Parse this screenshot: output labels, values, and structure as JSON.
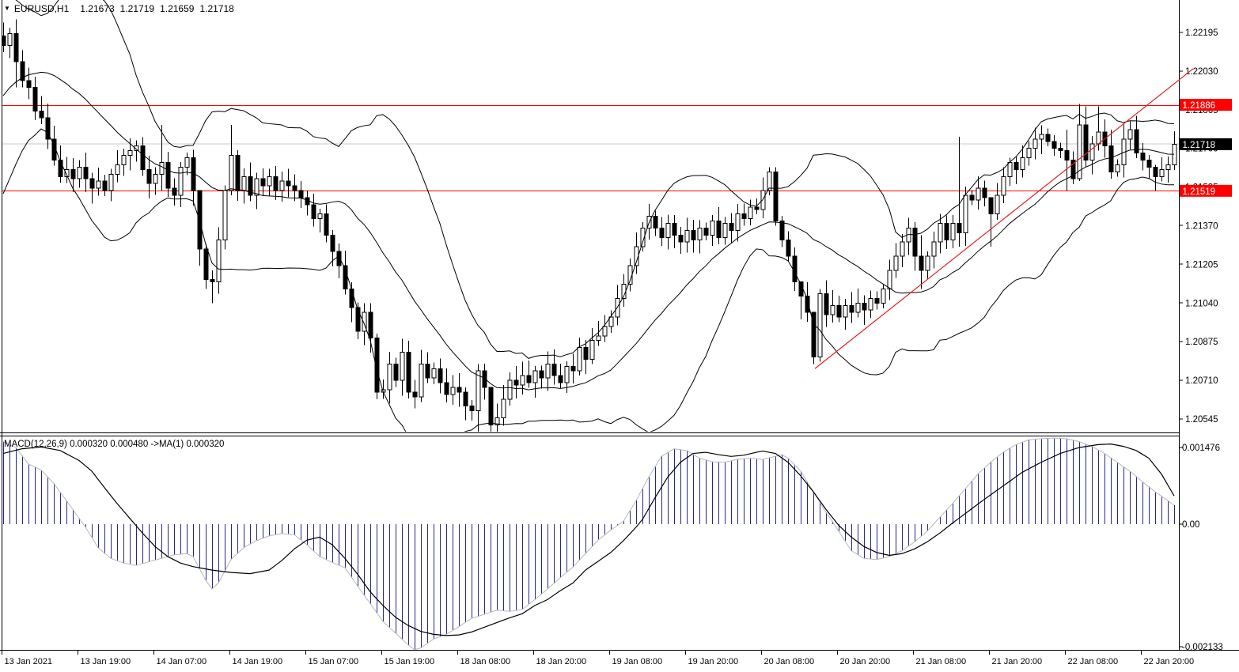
{
  "header": {
    "dropdown_icon": "▼",
    "symbol_period": "EURUSD,H1",
    "open": "1.21673",
    "high": "1.21719",
    "low": "1.21659",
    "close": "1.21718"
  },
  "macd_header": {
    "label": "MACD(12,26,9) 0.000320 0.000480  ->MA(1) 0.000320"
  },
  "colors": {
    "background": "#ffffff",
    "bull_body": "#ffffff",
    "bear_body": "#000000",
    "candle_outline": "#000000",
    "bollinger": "#000000",
    "level_line": "#ff0000",
    "trend_line": "#e02020",
    "current_price_line": "#c9c9c9",
    "badge_red": "#ff0000",
    "badge_black": "#000000",
    "badge_text": "#ffffff",
    "macd_bar": "#26268e",
    "macd_tip_line": "#b8b8b8",
    "macd_signal": "#000000",
    "axis_line": "#000000",
    "text": "#000000"
  },
  "chart_data": {
    "type": "candlestick",
    "symbol": "EURUSD",
    "timeframe": "H1",
    "ohlc_display": {
      "open": 1.21673,
      "high": 1.21719,
      "low": 1.21659,
      "close": 1.21718
    },
    "first_open": 1.2218,
    "closes": [
      1.2214,
      1.2219,
      1.2207,
      1.2199,
      1.2196,
      1.2186,
      1.2183,
      1.2174,
      1.2165,
      1.2158,
      1.2161,
      1.2157,
      1.2162,
      1.2157,
      1.2153,
      1.2156,
      1.2152,
      1.2159,
      1.2163,
      1.2167,
      1.2169,
      1.2171,
      1.2161,
      1.2155,
      1.2159,
      1.2164,
      1.2153,
      1.215,
      1.2162,
      1.2166,
      1.2152,
      1.2127,
      1.2114,
      1.2113,
      1.2131,
      1.2152,
      1.2167,
      1.2152,
      1.2158,
      1.215,
      1.2157,
      1.2154,
      1.2158,
      1.2152,
      1.2156,
      1.2154,
      1.2152,
      1.2149,
      1.2146,
      1.214,
      1.2142,
      1.2133,
      1.2126,
      1.212,
      1.211,
      1.2102,
      1.2092,
      1.21,
      1.2089,
      1.2066,
      1.2067,
      1.2078,
      1.2071,
      1.2083,
      1.2066,
      1.2064,
      1.2078,
      1.2072,
      1.2076,
      1.207,
      1.2065,
      1.2068,
      1.2066,
      1.206,
      1.2058,
      1.2075,
      1.2068,
      1.2052,
      1.2055,
      1.2063,
      1.2071,
      1.2069,
      1.2073,
      1.207,
      1.2075,
      1.2072,
      1.2078,
      1.2073,
      1.207,
      1.2077,
      1.2075,
      1.2085,
      1.208,
      1.2088,
      1.209,
      1.2094,
      1.2098,
      1.2106,
      1.2112,
      1.212,
      1.2128,
      1.2136,
      1.2141,
      1.2136,
      1.2132,
      1.2138,
      1.2133,
      1.213,
      1.2135,
      1.2131,
      1.2136,
      1.2133,
      1.2139,
      1.2132,
      1.2138,
      1.2135,
      1.2142,
      1.214,
      1.2145,
      1.2144,
      1.2152,
      1.216,
      1.2139,
      1.2131,
      1.2124,
      1.2113,
      1.2107,
      1.21,
      1.2081,
      1.2108,
      1.2099,
      1.2103,
      1.2098,
      1.2103,
      1.21,
      1.2104,
      1.2101,
      1.2106,
      1.2104,
      1.211,
      1.2118,
      1.2124,
      1.213,
      1.2136,
      1.2124,
      1.2118,
      1.2124,
      1.213,
      1.2138,
      1.2131,
      1.2138,
      1.2134,
      1.215,
      1.2148,
      1.2153,
      1.2149,
      1.2142,
      1.215,
      1.2158,
      1.2164,
      1.2161,
      1.2166,
      1.217,
      1.2174,
      1.2176,
      1.2173,
      1.217,
      1.2169,
      1.2165,
      1.2157,
      1.218,
      1.2165,
      1.2172,
      1.2177,
      1.2171,
      1.216,
      1.2163,
      1.2174,
      1.2178,
      1.2168,
      1.2165,
      1.2162,
      1.2158,
      1.2161,
      1.2163,
      1.21718
    ],
    "wick_overrides": {
      "2": [
        1.2225,
        1.2196
      ],
      "25": [
        1.218,
        1.2152
      ],
      "31": [
        1.2152,
        1.212
      ],
      "33": [
        1.2118,
        1.2104
      ],
      "36": [
        1.218,
        1.215
      ],
      "59": [
        1.2091,
        1.2063
      ],
      "75": [
        1.2078,
        1.2049
      ],
      "77": [
        1.2061,
        1.2048
      ],
      "121": [
        1.2162,
        1.215
      ],
      "122": [
        1.2162,
        1.2137
      ],
      "126": [
        1.211,
        1.2097
      ],
      "128": [
        1.2098,
        1.2078
      ],
      "129": [
        1.211,
        1.2079
      ],
      "145": [
        1.2133,
        1.211
      ],
      "151": [
        1.2175,
        1.2128
      ],
      "156": [
        1.2148,
        1.2128
      ],
      "168": [
        1.2178,
        1.2152
      ],
      "170": [
        1.2189,
        1.2156
      ],
      "171": [
        1.2188,
        1.2162
      ],
      "173": [
        1.2188,
        1.2169
      ],
      "175": [
        1.2178,
        1.2157
      ],
      "182": [
        1.2163,
        1.2152
      ]
    },
    "bollinger": {
      "period": 20,
      "deviation": 2,
      "prehistory_closes_estimated": [
        1.2148,
        1.2152,
        1.2158,
        1.2163,
        1.217,
        1.2175,
        1.2172,
        1.218,
        1.2186,
        1.2192,
        1.2198,
        1.2203,
        1.2199,
        1.2206,
        1.221,
        1.2212,
        1.2208,
        1.2214,
        1.222,
        1.2218
      ]
    },
    "levels": {
      "resistance": 1.21886,
      "support": 1.21519,
      "last_price": 1.21718
    },
    "trendline": {
      "from_bar": 128.25,
      "from_price": 1.2076,
      "to_bar": 188,
      "to_price": 1.2204
    },
    "price_axis": {
      "labels": [
        "1.22195",
        "1.22030",
        "1.21865",
        "1.21700",
        "1.21535",
        "1.21370",
        "1.21205",
        "1.21040",
        "1.20875",
        "1.20710",
        "1.20545"
      ],
      "values": [
        1.22195,
        1.2203,
        1.21865,
        1.217,
        1.21535,
        1.2137,
        1.21205,
        1.2104,
        1.20875,
        1.2071,
        1.20545
      ],
      "badges": [
        {
          "text": "1.21886",
          "value": 1.21886,
          "bg": "#ff0000",
          "role": "resistance"
        },
        {
          "text": "1.21718",
          "value": 1.21718,
          "bg": "#000000",
          "role": "current-price"
        },
        {
          "text": "1.21519",
          "value": 1.21519,
          "bg": "#ff0000",
          "role": "support"
        }
      ]
    },
    "macd": {
      "label": "MACD(12,26,9) 0.000320 0.000480  ->MA(1) 0.000320",
      "current_value": 0.00032,
      "current_signal": 0.00048,
      "axis_labels": [
        {
          "text": "0.001476",
          "value": 0.001476
        },
        {
          "text": "0.00",
          "value": 0
        },
        {
          "text": "-0.002133",
          "value": -0.002133
        }
      ],
      "values_keypoints": [
        [
          0,
          0.0014
        ],
        [
          2,
          0.0013
        ],
        [
          4,
          0.00102
        ],
        [
          6,
          0.00092
        ],
        [
          8,
          0.00069
        ],
        [
          10,
          0.0004
        ],
        [
          12,
          0.0001
        ],
        [
          13,
          -5e-05
        ],
        [
          15,
          -0.0004
        ],
        [
          17,
          -0.00058
        ],
        [
          19,
          -0.00066
        ],
        [
          21,
          -0.0007
        ],
        [
          23,
          -0.00064
        ],
        [
          25,
          -0.00058
        ],
        [
          27,
          -0.00052
        ],
        [
          29,
          -0.0005
        ],
        [
          30,
          -0.00055
        ],
        [
          31,
          -0.00075
        ],
        [
          32,
          -0.00095
        ],
        [
          33,
          -0.0011
        ],
        [
          34,
          -0.001
        ],
        [
          35,
          -0.0008
        ],
        [
          36,
          -0.0006
        ],
        [
          38,
          -0.0004
        ],
        [
          40,
          -0.00028
        ],
        [
          42,
          -0.0002
        ],
        [
          44,
          -0.00016
        ],
        [
          46,
          -0.00018
        ],
        [
          48,
          -0.00035
        ],
        [
          50,
          -0.00055
        ],
        [
          52,
          -0.00065
        ],
        [
          54,
          -0.00074
        ],
        [
          56,
          -0.00105
        ],
        [
          58,
          -0.00135
        ],
        [
          60,
          -0.00165
        ],
        [
          62,
          -0.00185
        ],
        [
          64,
          -0.00205
        ],
        [
          65,
          -0.00213
        ],
        [
          66,
          -0.0021
        ],
        [
          68,
          -0.00195
        ],
        [
          70,
          -0.00187
        ],
        [
          72,
          -0.00174
        ],
        [
          74,
          -0.0016
        ],
        [
          76,
          -0.00153
        ],
        [
          78,
          -0.00146
        ],
        [
          80,
          -0.00148
        ],
        [
          82,
          -0.00145
        ],
        [
          84,
          -0.00128
        ],
        [
          86,
          -0.0011
        ],
        [
          88,
          -0.00091
        ],
        [
          90,
          -0.00073
        ],
        [
          92,
          -0.0005
        ],
        [
          94,
          -0.00027
        ],
        [
          96,
          -0.0001
        ],
        [
          98,
          5e-05
        ],
        [
          100,
          0.0004
        ],
        [
          102,
          0.0008
        ],
        [
          104,
          0.00115
        ],
        [
          106,
          0.00128
        ],
        [
          108,
          0.00125
        ],
        [
          110,
          0.00112
        ],
        [
          112,
          0.00106
        ],
        [
          114,
          0.00105
        ],
        [
          116,
          0.0011
        ],
        [
          118,
          0.00112
        ],
        [
          120,
          0.0011
        ],
        [
          122,
          0.00115
        ],
        [
          123,
          0.00118
        ],
        [
          124,
          0.00112
        ],
        [
          126,
          0.0009
        ],
        [
          128,
          0.00055
        ],
        [
          130,
          0.0002
        ],
        [
          131,
          5e-05
        ],
        [
          132,
          -0.00012
        ],
        [
          134,
          -0.00045
        ],
        [
          136,
          -0.00058
        ],
        [
          138,
          -0.0006
        ],
        [
          140,
          -0.00055
        ],
        [
          142,
          -0.00045
        ],
        [
          144,
          -0.0003
        ],
        [
          146,
          -0.00012
        ],
        [
          148,
          0.00012
        ],
        [
          150,
          0.00035
        ],
        [
          152,
          0.0006
        ],
        [
          154,
          0.00085
        ],
        [
          156,
          0.00105
        ],
        [
          158,
          0.00122
        ],
        [
          160,
          0.00135
        ],
        [
          162,
          0.00143
        ],
        [
          164,
          0.00145
        ],
        [
          166,
          0.00146
        ],
        [
          168,
          0.00145
        ],
        [
          170,
          0.0014
        ],
        [
          172,
          0.00132
        ],
        [
          174,
          0.0012
        ],
        [
          176,
          0.00105
        ],
        [
          178,
          0.0009
        ],
        [
          180,
          0.00072
        ],
        [
          182,
          0.00055
        ],
        [
          184,
          0.0004
        ],
        [
          185,
          0.00032
        ]
      ],
      "signal_keypoints": [
        [
          0,
          0.0012
        ],
        [
          3,
          0.00128
        ],
        [
          6,
          0.00131
        ],
        [
          9,
          0.00125
        ],
        [
          12,
          0.00108
        ],
        [
          14,
          0.0009
        ],
        [
          16,
          0.00062
        ],
        [
          18,
          0.00035
        ],
        [
          20,
          0.0001
        ],
        [
          22,
          -0.00015
        ],
        [
          24,
          -0.00038
        ],
        [
          26,
          -0.00055
        ],
        [
          28,
          -0.00066
        ],
        [
          30,
          -0.00072
        ],
        [
          33,
          -0.00078
        ],
        [
          36,
          -0.00082
        ],
        [
          39,
          -0.00084
        ],
        [
          42,
          -0.00078
        ],
        [
          44,
          -0.00062
        ],
        [
          46,
          -0.00042
        ],
        [
          48,
          -0.00027
        ],
        [
          50,
          -0.00022
        ],
        [
          52,
          -0.00035
        ],
        [
          54,
          -0.00058
        ],
        [
          56,
          -0.00085
        ],
        [
          58,
          -0.00115
        ],
        [
          60,
          -0.00138
        ],
        [
          62,
          -0.00158
        ],
        [
          64,
          -0.00172
        ],
        [
          66,
          -0.00182
        ],
        [
          68,
          -0.00187
        ],
        [
          70,
          -0.00189
        ],
        [
          72,
          -0.00188
        ],
        [
          74,
          -0.00183
        ],
        [
          76,
          -0.00175
        ],
        [
          78,
          -0.00167
        ],
        [
          80,
          -0.00159
        ],
        [
          82,
          -0.00152
        ],
        [
          84,
          -0.00138
        ],
        [
          86,
          -0.00128
        ],
        [
          88,
          -0.00113
        ],
        [
          90,
          -0.001
        ],
        [
          92,
          -0.00078
        ],
        [
          94,
          -0.00063
        ],
        [
          96,
          -0.00048
        ],
        [
          98,
          -0.00028
        ],
        [
          100,
          -5e-05
        ],
        [
          101,
          8e-05
        ],
        [
          103,
          0.00045
        ],
        [
          105,
          0.0008
        ],
        [
          107,
          0.00105
        ],
        [
          109,
          0.0012
        ],
        [
          111,
          0.00122
        ],
        [
          113,
          0.00118
        ],
        [
          115,
          0.00115
        ],
        [
          117,
          0.00117
        ],
        [
          119,
          0.00122
        ],
        [
          120,
          0.00124
        ],
        [
          122,
          0.0012
        ],
        [
          124,
          0.00105
        ],
        [
          126,
          0.00082
        ],
        [
          128,
          0.00055
        ],
        [
          130,
          0.00025
        ],
        [
          132,
          -2e-05
        ],
        [
          134,
          -0.00022
        ],
        [
          136,
          -0.00038
        ],
        [
          138,
          -0.00048
        ],
        [
          140,
          -0.00053
        ],
        [
          142,
          -0.0005
        ],
        [
          144,
          -0.00042
        ],
        [
          146,
          -0.0003
        ],
        [
          148,
          -0.00015
        ],
        [
          150,
          2e-05
        ],
        [
          152,
          0.00018
        ],
        [
          155,
          0.00042
        ],
        [
          158,
          0.00065
        ],
        [
          161,
          0.00088
        ],
        [
          164,
          0.00105
        ],
        [
          167,
          0.0012
        ],
        [
          170,
          0.0013
        ],
        [
          173,
          0.00135
        ],
        [
          175,
          0.00136
        ],
        [
          177,
          0.00132
        ],
        [
          179,
          0.00125
        ],
        [
          181,
          0.00112
        ],
        [
          183,
          0.00085
        ],
        [
          185,
          0.00048
        ]
      ]
    },
    "time_labels": [
      "13 Jan 2021",
      "13 Jan 19:00",
      "14 Jan 07:00",
      "14 Jan 19:00",
      "15 Jan 07:00",
      "15 Jan 19:00",
      "18 Jan 08:00",
      "18 Jan 20:00",
      "19 Jan 08:00",
      "19 Jan 20:00",
      "20 Jan 08:00",
      "20 Jan 20:00",
      "21 Jan 08:00",
      "21 Jan 20:00",
      "22 Jan 08:00",
      "22 Jan 20:00"
    ]
  }
}
